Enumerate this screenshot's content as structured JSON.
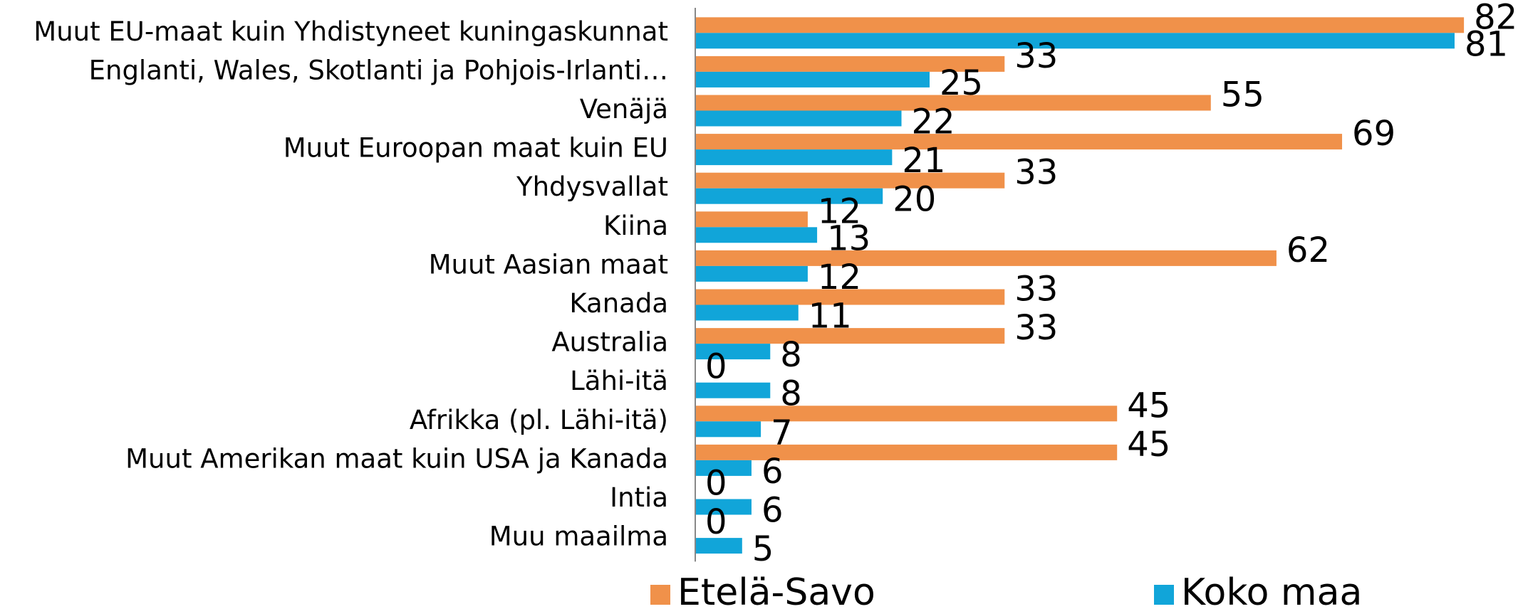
{
  "chart_data": {
    "type": "hbar",
    "categories": [
      "Muut EU-maat  kuin Yhdistyneet kuningaskunnat",
      "Englanti, Wales, Skotlanti ja Pohjois-Irlanti…",
      "Venäjä",
      "Muut Euroopan maat kuin EU",
      "Yhdysvallat",
      "Kiina",
      "Muut Aasian maat",
      "Kanada",
      "Australia",
      "Lähi-itä",
      "Afrikka (pl. Lähi-itä)",
      "Muut Amerikan maat kuin USA ja Kanada",
      "Intia",
      "Muu maailma"
    ],
    "series": [
      {
        "name": "Etelä-Savo",
        "color": "#f0914a",
        "values": [
          82,
          33,
          55,
          69,
          33,
          12,
          62,
          33,
          33,
          0,
          45,
          45,
          0,
          0
        ]
      },
      {
        "name": "Koko maa",
        "color": "#11a5d9",
        "values": [
          81,
          25,
          22,
          21,
          20,
          13,
          12,
          11,
          8,
          8,
          7,
          6,
          6,
          5
        ]
      }
    ],
    "xlim": [
      0,
      100
    ],
    "legend": "bottom"
  }
}
